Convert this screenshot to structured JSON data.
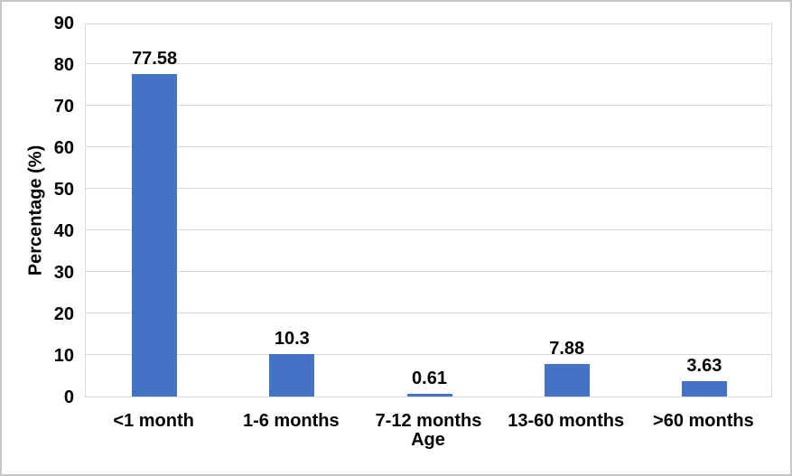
{
  "chart_data": {
    "type": "bar",
    "title": "",
    "xlabel": "Age",
    "ylabel": "Percentage (%)",
    "categories": [
      "<1 month",
      "1-6 months",
      "7-12 months",
      "13-60 months",
      ">60 months"
    ],
    "values": [
      77.58,
      10.3,
      0.61,
      7.88,
      3.63
    ],
    "value_labels": [
      "77.58",
      "10.3",
      "0.61",
      "7.88",
      "3.63"
    ],
    "ylim": [
      0,
      90
    ],
    "yticks": [
      0,
      10,
      20,
      30,
      40,
      50,
      60,
      70,
      80,
      90
    ],
    "grid": "horizontal",
    "legend_position": "none",
    "bar_color": "#4472C4",
    "gridline_color": "#D9D9D9",
    "plot_border_color": "#D9D9D9",
    "text_color": "#000000",
    "frame_border_color": "#C6C6C6",
    "background_color": "#FFFFFF"
  }
}
